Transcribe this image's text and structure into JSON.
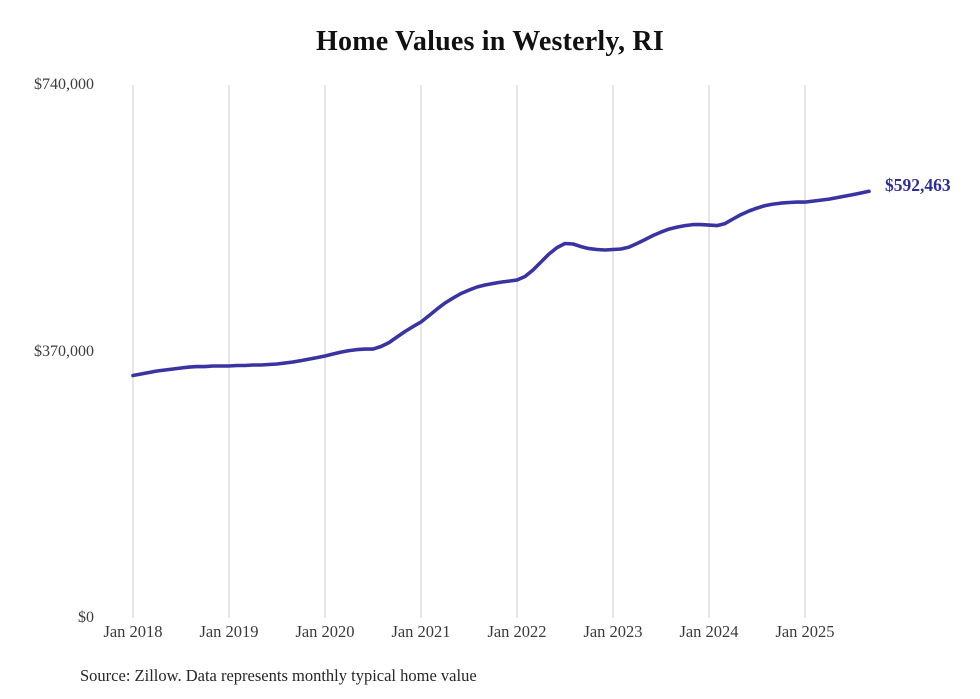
{
  "chart": {
    "title": "Home Values in Westerly, RI",
    "end_label": "$592,463",
    "source": "Source: Zillow. Data represents monthly typical home value",
    "line_color": "#3a34a3",
    "label_color": "#2f2d98",
    "grid_color": "#cccccc",
    "background_color": "#ffffff"
  },
  "chart_data": {
    "type": "line",
    "title": "Home Values in Westerly, RI",
    "xlabel": "",
    "ylabel": "",
    "ylim": [
      0,
      740000
    ],
    "grid": "vertical-yearly",
    "legend_position": "none",
    "x_tick_labels": [
      "Jan 2018",
      "Jan 2019",
      "Jan 2020",
      "Jan 2021",
      "Jan 2022",
      "Jan 2023",
      "Jan 2024",
      "Jan 2025"
    ],
    "y_ticks": [
      {
        "value": 740000,
        "label": "$740,000"
      },
      {
        "value": 370000,
        "label": "$370,000"
      },
      {
        "value": 0,
        "label": "$0"
      }
    ],
    "series_name": "Typical home value (monthly)",
    "months": [
      "2018-01",
      "2018-02",
      "2018-03",
      "2018-04",
      "2018-05",
      "2018-06",
      "2018-07",
      "2018-08",
      "2018-09",
      "2018-10",
      "2018-11",
      "2018-12",
      "2019-01",
      "2019-02",
      "2019-03",
      "2019-04",
      "2019-05",
      "2019-06",
      "2019-07",
      "2019-08",
      "2019-09",
      "2019-10",
      "2019-11",
      "2019-12",
      "2020-01",
      "2020-02",
      "2020-03",
      "2020-04",
      "2020-05",
      "2020-06",
      "2020-07",
      "2020-08",
      "2020-09",
      "2020-10",
      "2020-11",
      "2020-12",
      "2021-01",
      "2021-02",
      "2021-03",
      "2021-04",
      "2021-05",
      "2021-06",
      "2021-07",
      "2021-08",
      "2021-09",
      "2021-10",
      "2021-11",
      "2021-12",
      "2022-01",
      "2022-02",
      "2022-03",
      "2022-04",
      "2022-05",
      "2022-06",
      "2022-07",
      "2022-08",
      "2022-09",
      "2022-10",
      "2022-11",
      "2022-12",
      "2023-01",
      "2023-02",
      "2023-03",
      "2023-04",
      "2023-05",
      "2023-06",
      "2023-07",
      "2023-08",
      "2023-09",
      "2023-10",
      "2023-11",
      "2023-12",
      "2024-01",
      "2024-02",
      "2024-03",
      "2024-04",
      "2024-05",
      "2024-06",
      "2024-07",
      "2024-08",
      "2024-09",
      "2024-10",
      "2024-11",
      "2024-12",
      "2025-01",
      "2025-02",
      "2025-03",
      "2025-04",
      "2025-05",
      "2025-06",
      "2025-07",
      "2025-08",
      "2025-09"
    ],
    "values": [
      336700,
      338800,
      340800,
      342900,
      344300,
      345700,
      347100,
      348400,
      349100,
      349100,
      349800,
      349800,
      349800,
      350500,
      350500,
      351200,
      351200,
      351900,
      352600,
      354000,
      355400,
      357400,
      359500,
      361600,
      363700,
      366500,
      369200,
      371300,
      372700,
      373400,
      373400,
      376900,
      382400,
      390100,
      397700,
      404600,
      410900,
      419900,
      428900,
      437300,
      444200,
      450500,
      455300,
      459500,
      462300,
      464400,
      466400,
      467800,
      469200,
      474100,
      483100,
      494200,
      505300,
      514300,
      519900,
      519200,
      515700,
      512900,
      511600,
      510900,
      511600,
      512300,
      515000,
      519900,
      525400,
      531000,
      535800,
      540000,
      542700,
      544800,
      546200,
      546200,
      545500,
      544800,
      547600,
      553900,
      560100,
      565000,
      569100,
      572600,
      574700,
      576100,
      576800,
      577400,
      577400,
      578800,
      580200,
      581600,
      583700,
      585800,
      587900,
      590000,
      592463
    ],
    "latest": {
      "month": "2025-09",
      "value": 592463,
      "label": "$592,463"
    }
  }
}
